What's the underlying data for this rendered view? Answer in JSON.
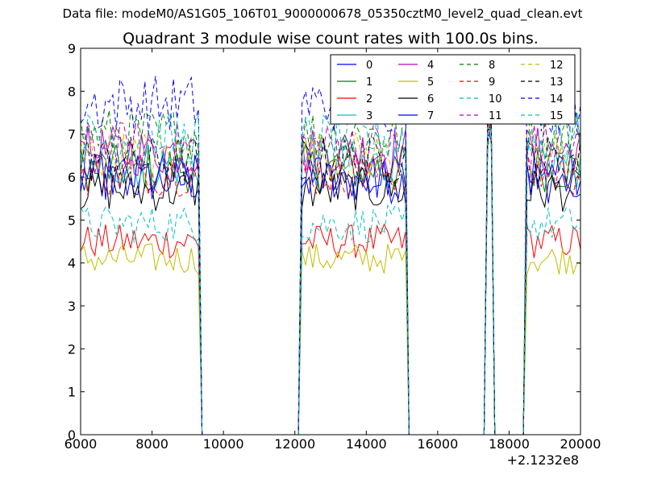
{
  "header": {
    "data_file": "Data file: modeM0/AS1G05_106T01_9000000678_05350cztM0_level2_quad_clean.evt"
  },
  "chart_data": {
    "type": "line",
    "title": "Quadrant 3 module wise count rates with 100.0s bins.",
    "xlabel": "",
    "ylabel": "",
    "x_offset_label": "+2.1232e8",
    "xlim": [
      6000,
      20000
    ],
    "ylim": [
      0,
      9
    ],
    "x_ticks": [
      6000,
      8000,
      10000,
      12000,
      14000,
      16000,
      18000,
      20000
    ],
    "x_tick_labels": [
      "6000",
      "8000",
      "10000",
      "12000",
      "14000",
      "16000",
      "18000",
      "20000"
    ],
    "y_ticks": [
      0,
      1,
      2,
      3,
      4,
      5,
      6,
      7,
      8,
      9
    ],
    "y_tick_labels": [
      "0",
      "1",
      "2",
      "3",
      "4",
      "5",
      "6",
      "7",
      "8",
      "9"
    ],
    "grid": false,
    "legend_position": "top-right",
    "legend_columns": 4,
    "bin_size": 100,
    "segments": [
      [
        6000,
        9300
      ],
      [
        12200,
        15100
      ],
      [
        17400,
        17500
      ],
      [
        18500,
        20000
      ]
    ],
    "series": [
      {
        "name": "0",
        "color": "#0000ff",
        "dash": "solid",
        "level": 5.9
      },
      {
        "name": "1",
        "color": "#008000",
        "dash": "solid",
        "level": 6.2
      },
      {
        "name": "2",
        "color": "#ff0000",
        "dash": "solid",
        "level": 4.5
      },
      {
        "name": "3",
        "color": "#00bfbf",
        "dash": "solid",
        "level": 6.3
      },
      {
        "name": "4",
        "color": "#bf00bf",
        "dash": "solid",
        "level": 6.6
      },
      {
        "name": "5",
        "color": "#bfbf00",
        "dash": "solid",
        "level": 4.1
      },
      {
        "name": "6",
        "color": "#000000",
        "dash": "solid",
        "level": 5.7
      },
      {
        "name": "7",
        "color": "#0000ff",
        "dash": "solid",
        "level": 6.0
      },
      {
        "name": "8",
        "color": "#008000",
        "dash": "dashed",
        "level": 7.0
      },
      {
        "name": "9",
        "color": "#ff0000",
        "dash": "dashed",
        "level": 6.1
      },
      {
        "name": "10",
        "color": "#00bfbf",
        "dash": "dashed",
        "level": 4.9
      },
      {
        "name": "11",
        "color": "#bf00bf",
        "dash": "dashed",
        "level": 6.7
      },
      {
        "name": "12",
        "color": "#bfbf00",
        "dash": "dashed",
        "level": 6.5
      },
      {
        "name": "13",
        "color": "#000000",
        "dash": "dashed",
        "level": 6.4
      },
      {
        "name": "14",
        "color": "#0000ff",
        "dash": "dashed",
        "level": 7.7
      },
      {
        "name": "15",
        "color": "#00bfbf",
        "dash": "dashed",
        "level": 6.9
      }
    ]
  }
}
